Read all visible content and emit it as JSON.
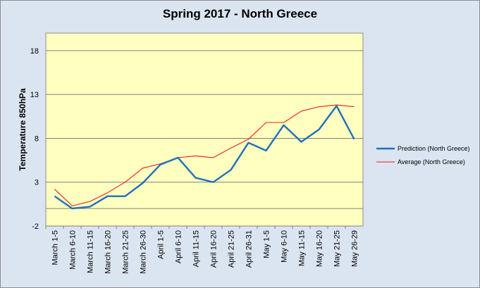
{
  "chart_data": {
    "type": "line",
    "title": "Spring 2017 - North Greece",
    "xlabel": "",
    "ylabel": "Temperature 850hPa",
    "ylim": [
      -2,
      20
    ],
    "yticks": [
      "-2",
      "3",
      "8",
      "13",
      "18"
    ],
    "grid": true,
    "legend_position": "right",
    "categories": [
      "March 1-5",
      "March 6-10",
      "March 11-15",
      "March 16-20",
      "March 21-25",
      "March 26-30",
      "April 1-5",
      "April 6-10",
      "April 11-15",
      "April 16-20",
      "April 21-25",
      "April 26-31",
      "May 1-5",
      "May 6-10",
      "May 11-15",
      "May 16-20",
      "May 21-25",
      "May 26-29"
    ],
    "series": [
      {
        "name": "Prediction (North Greece)",
        "color": "#1f6fbf",
        "values": [
          1.4,
          0.0,
          0.2,
          1.4,
          1.4,
          2.9,
          5.0,
          5.8,
          3.5,
          3.0,
          4.4,
          7.5,
          6.6,
          9.5,
          7.6,
          9.0,
          11.7,
          7.9
        ]
      },
      {
        "name": "Average (North Greece)",
        "color": "#e0201c",
        "values": [
          2.2,
          0.3,
          0.8,
          1.8,
          3.0,
          4.6,
          5.1,
          5.8,
          6.0,
          5.8,
          6.9,
          7.9,
          9.8,
          9.8,
          11.1,
          11.6,
          11.8,
          11.6
        ]
      }
    ]
  }
}
